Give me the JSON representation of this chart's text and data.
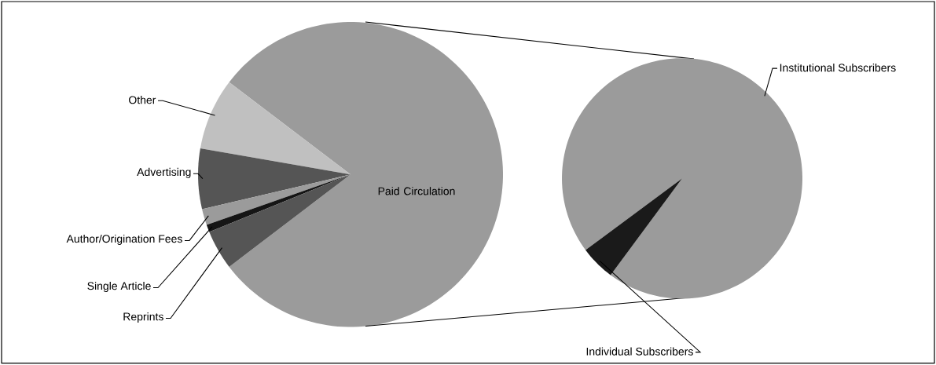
{
  "chart_data": [
    {
      "type": "pie",
      "categories": [
        "Paid Circulation",
        "Other",
        "Advertising",
        "Author/Origination Fees",
        "Single Article",
        "Reprints"
      ],
      "values": [
        79.3,
        7.6,
        6.4,
        1.7,
        0.8,
        4.2
      ],
      "colors": [
        "#9b9b9b",
        "#c0c0c0",
        "#555555",
        "#9b9b9b",
        "#151515",
        "#555555"
      ]
    },
    {
      "type": "pie",
      "categories": [
        "Institutional Subscribers",
        "Individual Subscribers"
      ],
      "values": [
        95.3,
        4.7
      ],
      "colors": [
        "#9b9b9b",
        "#1a1a1a"
      ]
    }
  ]
}
